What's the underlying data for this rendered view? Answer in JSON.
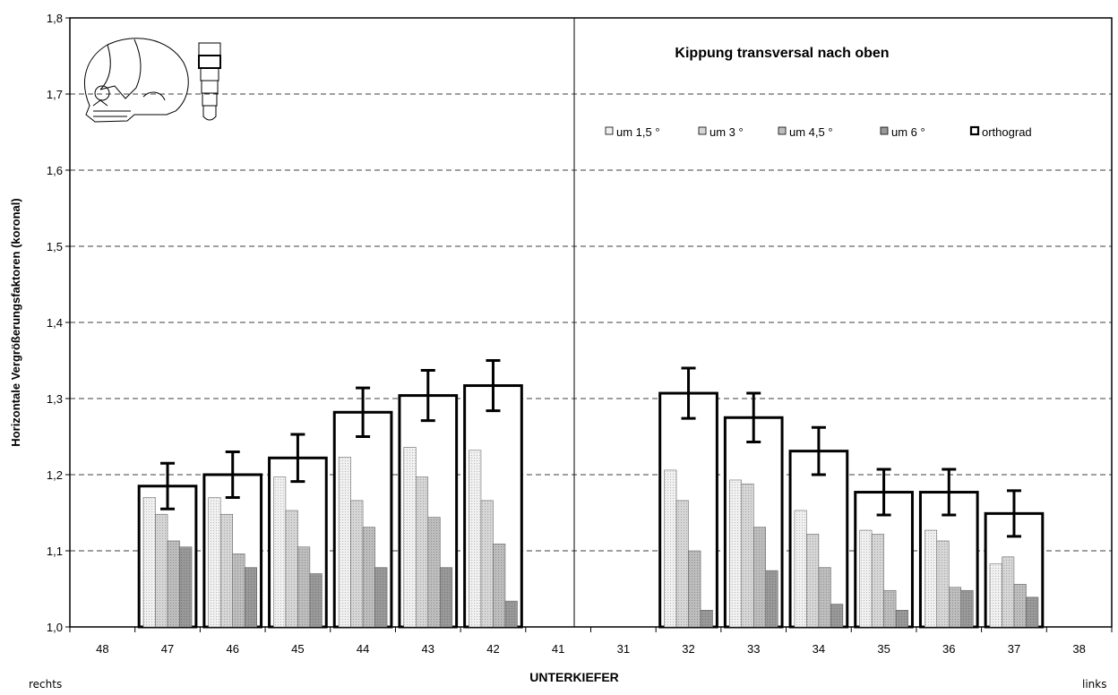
{
  "chart_data": {
    "type": "bar",
    "title": "Kippung transversal nach oben",
    "xlabel": "UNTERKIEFER",
    "ylabel": "Horizontale Vergrößerungsfaktoren (koronal)",
    "left_side_label": "rechts",
    "right_side_label": "links",
    "ylim": [
      1.0,
      1.8
    ],
    "yticks": [
      "1,0",
      "1,1",
      "1,2",
      "1,3",
      "1,4",
      "1,5",
      "1,6",
      "1,7",
      "1,8"
    ],
    "grid": true,
    "legend_position": "top-right",
    "categories": [
      "48",
      "47",
      "46",
      "45",
      "44",
      "43",
      "42",
      "41",
      "31",
      "32",
      "33",
      "34",
      "35",
      "36",
      "37",
      "38"
    ],
    "series": [
      {
        "name": "um 1,5 °",
        "color": "#f0f0f0",
        "values": [
          null,
          1.17,
          1.17,
          1.197,
          1.223,
          1.236,
          1.232,
          null,
          null,
          1.206,
          1.193,
          1.153,
          1.127,
          1.127,
          1.083,
          null
        ]
      },
      {
        "name": "um 3 °",
        "color": "#d6d6d6",
        "values": [
          null,
          1.148,
          1.148,
          1.153,
          1.166,
          1.197,
          1.166,
          null,
          null,
          1.166,
          1.188,
          1.122,
          1.122,
          1.113,
          1.092,
          null
        ]
      },
      {
        "name": "um 4,5 °",
        "color": "#bdbdbd",
        "values": [
          null,
          1.113,
          1.096,
          1.105,
          1.131,
          1.144,
          1.109,
          null,
          null,
          1.1,
          1.131,
          1.078,
          1.048,
          1.052,
          1.056,
          null
        ]
      },
      {
        "name": "um 6 °",
        "color": "#999999",
        "values": [
          null,
          1.105,
          1.078,
          1.07,
          1.078,
          1.078,
          1.034,
          null,
          null,
          1.022,
          1.074,
          1.03,
          1.022,
          1.048,
          1.039,
          null
        ]
      },
      {
        "name": "orthograd",
        "color": "#ffffff",
        "values": [
          null,
          1.185,
          1.2,
          1.222,
          1.282,
          1.304,
          1.317,
          null,
          null,
          1.307,
          1.275,
          1.231,
          1.177,
          1.177,
          1.149,
          null
        ],
        "error": [
          null,
          0.03,
          0.03,
          0.031,
          0.032,
          0.033,
          0.033,
          null,
          null,
          0.033,
          0.032,
          0.031,
          0.03,
          0.03,
          0.03,
          null
        ]
      }
    ]
  }
}
